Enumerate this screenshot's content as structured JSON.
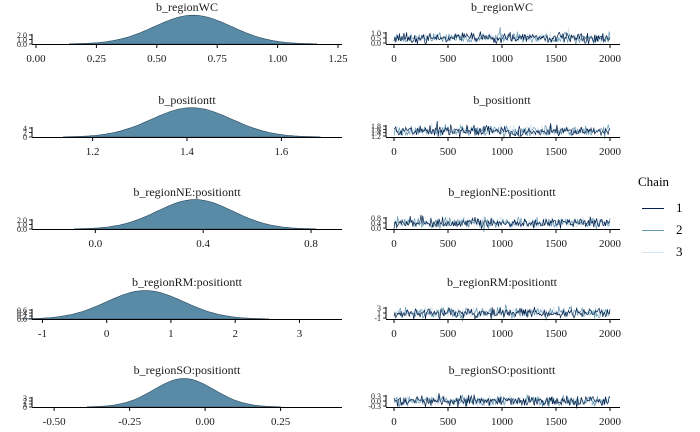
{
  "chart_data": [
    {
      "type": "area",
      "panel": "density",
      "title": "b_regionWC",
      "x_ticks": [
        "0.00",
        "0.25",
        "0.50",
        "0.75",
        "1.00",
        "1.25"
      ],
      "xlim": [
        0.0,
        1.25
      ],
      "density": {
        "mean": 0.65,
        "sd": 0.16
      },
      "y_ticks": [
        "0.0",
        "1.0",
        "2.0"
      ],
      "ylim": [
        0,
        2.6
      ]
    },
    {
      "type": "line",
      "panel": "trace",
      "title": "b_regionWC",
      "x_ticks": [
        "0",
        "500",
        "1000",
        "1500",
        "2000"
      ],
      "xlim": [
        0,
        2000
      ],
      "y_ticks": [
        "0.0",
        "0.5",
        "1.0"
      ],
      "trace": {
        "mean": 0.65,
        "sd": 0.16,
        "draws": 2000,
        "chains": 3
      }
    },
    {
      "type": "area",
      "panel": "density",
      "title": "b_positiontt",
      "x_ticks": [
        "1.2",
        "1.4",
        "1.6"
      ],
      "xlim": [
        1.08,
        1.72
      ],
      "density": {
        "mean": 1.41,
        "sd": 0.085
      },
      "y_ticks": [
        "0",
        "2",
        "4"
      ],
      "ylim": [
        0,
        4.8
      ]
    },
    {
      "type": "line",
      "panel": "trace",
      "title": "b_positiontt",
      "x_ticks": [
        "0",
        "500",
        "1000",
        "1500",
        "2000"
      ],
      "xlim": [
        0,
        2000
      ],
      "y_ticks": [
        "1.2",
        "1.4",
        "1.6",
        "1.8"
      ],
      "trace": {
        "mean": 1.41,
        "sd": 0.085,
        "draws": 2000,
        "chains": 3
      }
    },
    {
      "type": "area",
      "panel": "density",
      "title": "b_regionNE:positiontt",
      "x_ticks": [
        "0.0",
        "0.4",
        "0.8"
      ],
      "xlim": [
        -0.22,
        0.9
      ],
      "density": {
        "mean": 0.37,
        "sd": 0.14
      },
      "y_ticks": [
        "0.0",
        "1.0",
        "2.0"
      ],
      "ylim": [
        0,
        2.9
      ]
    },
    {
      "type": "line",
      "panel": "trace",
      "title": "b_regionNE:positiontt",
      "x_ticks": [
        "0",
        "500",
        "1000",
        "1500",
        "2000"
      ],
      "xlim": [
        0,
        2000
      ],
      "y_ticks": [
        "0.0",
        "0.4",
        "0.8"
      ],
      "trace": {
        "mean": 0.37,
        "sd": 0.14,
        "draws": 2000,
        "chains": 3
      }
    },
    {
      "type": "area",
      "panel": "density",
      "title": "b_regionRM:positiontt",
      "x_ticks": [
        "-1",
        "0",
        "1",
        "2",
        "3"
      ],
      "xlim": [
        -1.1,
        3.6
      ],
      "density": {
        "mean": 0.6,
        "sd": 0.6
      },
      "y_ticks": [
        "0.0",
        "0.2",
        "0.4",
        "0.6"
      ],
      "ylim": [
        0,
        0.7
      ]
    },
    {
      "type": "line",
      "panel": "trace",
      "title": "b_regionRM:positiontt",
      "x_ticks": [
        "0",
        "500",
        "1000",
        "1500",
        "2000"
      ],
      "xlim": [
        0,
        2000
      ],
      "y_ticks": [
        "-1",
        "1",
        "3"
      ],
      "trace": {
        "mean": 0.6,
        "sd": 0.6,
        "draws": 2000,
        "chains": 3
      }
    },
    {
      "type": "area",
      "panel": "density",
      "title": "b_regionSO:positiontt",
      "x_ticks": [
        "-0.50",
        "-0.25",
        "0.00",
        "0.25"
      ],
      "xlim": [
        -0.56,
        0.44
      ],
      "density": {
        "mean": -0.07,
        "sd": 0.1
      },
      "y_ticks": [
        "0",
        "1",
        "2",
        "3"
      ],
      "ylim": [
        0,
        4.2
      ]
    },
    {
      "type": "line",
      "panel": "trace",
      "title": "b_regionSO:positiontt",
      "x_ticks": [
        "0",
        "500",
        "1000",
        "1500",
        "2000"
      ],
      "xlim": [
        0,
        2000
      ],
      "y_ticks": [
        "-0.3",
        "0.0",
        "0.3"
      ],
      "trace": {
        "mean": -0.07,
        "sd": 0.1,
        "draws": 2000,
        "chains": 3
      }
    }
  ],
  "legend": {
    "title": "Chain",
    "items": [
      {
        "label": "1",
        "color": "#011f4b"
      },
      {
        "label": "2",
        "color": "#6497b1"
      },
      {
        "label": "3",
        "color": "#d8e4ee"
      }
    ]
  },
  "colors": {
    "density_fill": "#5a8ba6",
    "density_stroke": "#2a4a60",
    "axis": "#000000",
    "text": "#1a1a1a"
  }
}
